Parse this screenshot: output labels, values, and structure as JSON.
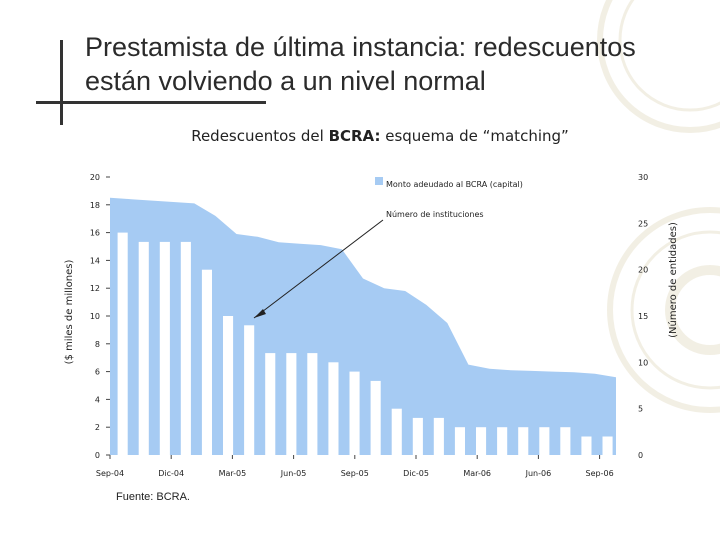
{
  "slide": {
    "title_line1": "Prestamista de última instancia: redescuentos",
    "title_line2": "están volviendo a un nivel normal",
    "source": "Fuente: BCRA."
  },
  "colors": {
    "area": "#a6cbf3",
    "bar": "#ffffff",
    "text": "#222222",
    "accent_line": "#333333"
  },
  "chart_data": {
    "type": "bar",
    "title": "Redescuentos del BCRA: esquema de “matching”",
    "title_parts": [
      "Redescuentos del ",
      "BCRA:",
      " esquema de “matching”"
    ],
    "ylabel_left": "($ miles de millones)",
    "ylabel_right": "(Número de entidades)",
    "ylim_left": [
      0,
      20
    ],
    "ylim_right": [
      0,
      30
    ],
    "left_ticks": [
      0,
      2,
      4,
      6,
      8,
      10,
      12,
      14,
      16,
      18,
      20
    ],
    "right_ticks": [
      0,
      5,
      10,
      15,
      20,
      25,
      30
    ],
    "x_tick_labels": [
      "Sep-04",
      "Dic-04",
      "Mar-05",
      "Jun-05",
      "Sep-05",
      "Dic-05",
      "Mar-06",
      "Jun-06",
      "Sep-06"
    ],
    "series": [
      {
        "name": "Monto adeudado al BCRA (capital)",
        "type": "area",
        "axis": "left",
        "values": [
          18.5,
          18.4,
          18.3,
          18.2,
          18.1,
          17.2,
          15.9,
          15.7,
          15.3,
          15.2,
          15.1,
          14.8,
          12.7,
          12.0,
          11.8,
          10.8,
          9.5,
          6.5,
          6.2,
          6.1,
          6.05,
          6.0,
          5.95,
          5.85,
          5.6
        ]
      },
      {
        "name": "Número de instituciones",
        "type": "bar",
        "axis": "right",
        "values": [
          24,
          23,
          23,
          23,
          20,
          15,
          14,
          11,
          11,
          11,
          10,
          9,
          8,
          5,
          4,
          4,
          3,
          3,
          3,
          3,
          3,
          3,
          2,
          2
        ]
      }
    ],
    "annotation": "Número de instituciones"
  }
}
